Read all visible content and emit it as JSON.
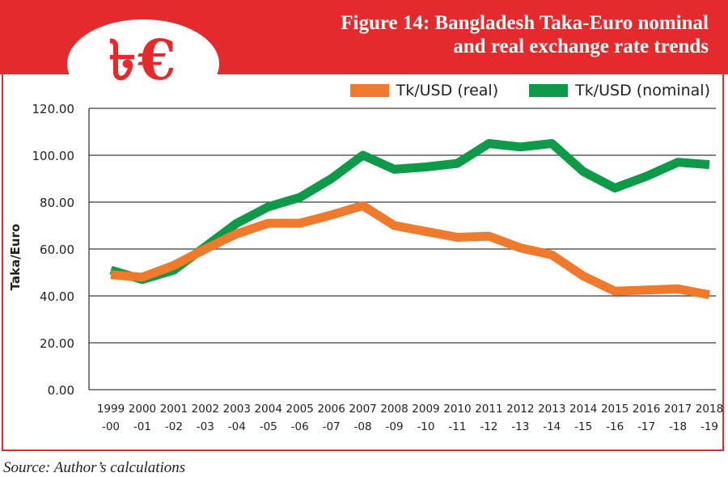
{
  "header": {
    "logo_symbols": "৳€",
    "title_line1": "Figure 14: Bangladesh Taka-Euro nominal",
    "title_line2": "and real exchange rate trends"
  },
  "colors": {
    "banner": "#e52a2e",
    "real": "#f07a2b",
    "nominal": "#0f9a4a",
    "grid": "#3a3a3a"
  },
  "legend": [
    {
      "label": "Tk/USD (real)",
      "color": "#f07a2b"
    },
    {
      "label": "Tk/USD (nominal)",
      "color": "#0f9a4a"
    }
  ],
  "source": "Source: Author’s calculations",
  "chart_data": {
    "type": "line",
    "title": "Figure 14: Bangladesh Taka-Euro nominal and real exchange rate trends",
    "xlabel": "",
    "ylabel": "Taka/Euro",
    "ylim": [
      0,
      120
    ],
    "yticks": [
      "0.00",
      "20.00",
      "40.00",
      "60.00",
      "80.00",
      "100.00",
      "120.00"
    ],
    "grid": true,
    "legend_position": "top-right",
    "categories": [
      [
        "1999",
        "-00"
      ],
      [
        "2000",
        "-01"
      ],
      [
        "2001",
        "-02"
      ],
      [
        "2002",
        "-03"
      ],
      [
        "2003",
        "-04"
      ],
      [
        "2004",
        "-05"
      ],
      [
        "2005",
        "-06"
      ],
      [
        "2006",
        "-07"
      ],
      [
        "2007",
        "-08"
      ],
      [
        "2008",
        "-09"
      ],
      [
        "2009",
        "-10"
      ],
      [
        "2010",
        "-11"
      ],
      [
        "2011",
        "-12"
      ],
      [
        "2012",
        "-13"
      ],
      [
        "2013",
        "-14"
      ],
      [
        "2014",
        "-15"
      ],
      [
        "2015",
        "-16"
      ],
      [
        "2016",
        "-17"
      ],
      [
        "2017",
        "-18"
      ],
      [
        "2018",
        "-19"
      ]
    ],
    "series": [
      {
        "name": "Tk/USD (nominal)",
        "color": "#0f9a4a",
        "values": [
          51,
          47,
          51,
          61,
          71,
          78,
          82,
          90,
          100,
          94,
          95,
          96.5,
          105,
          103.5,
          105,
          93,
          86,
          91,
          97,
          96
        ]
      },
      {
        "name": "Tk/USD (real)",
        "color": "#f07a2b",
        "values": [
          49,
          48,
          53,
          60,
          66.5,
          71,
          71,
          74.5,
          78.5,
          70,
          67.5,
          65,
          65.5,
          60.5,
          57.5,
          48.5,
          42,
          42.5,
          43,
          40.5
        ]
      }
    ]
  }
}
